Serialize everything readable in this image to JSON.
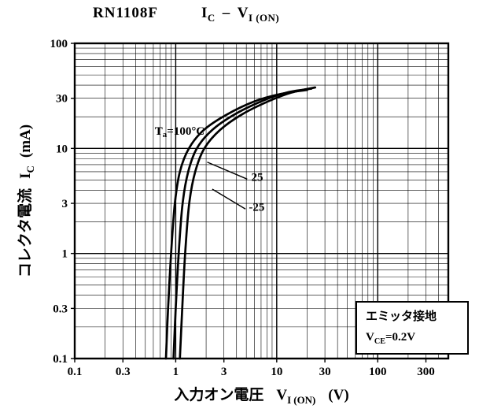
{
  "header": {
    "device": "RN1108F",
    "y_sym": "I",
    "y_sub": "C",
    "dash": "–",
    "x_sym": "V",
    "x_sub": "I (ON)"
  },
  "x_axis": {
    "label_jp": "入力オン電圧",
    "sym": "V",
    "sub": "I (ON)",
    "unit": "(V)"
  },
  "y_axis": {
    "label_jp": "コレクタ電流",
    "sym": "I",
    "sub": "C",
    "unit": "(mA)"
  },
  "note_box": {
    "line1": "エミッタ接地",
    "sym": "V",
    "sub": "CE",
    "value": "=0.2V"
  },
  "chart_data": {
    "type": "line",
    "title": "RN1108F  IC – VI(ON)",
    "xscale": "log",
    "yscale": "log",
    "xlim": [
      0.1,
      500
    ],
    "ylim": [
      0.1,
      100
    ],
    "xticks": [
      "0.1",
      "0.3",
      "1",
      "3",
      "10",
      "30",
      "100",
      "300"
    ],
    "yticks": [
      "0.1",
      "0.3",
      "1",
      "3",
      "10",
      "30",
      "100"
    ],
    "xlabel": "入力オン電圧 VI(ON) (V)",
    "ylabel": "コレクタ電流 IC (mA)",
    "grid": true,
    "legend_position": "annotations-on-plot",
    "series": [
      {
        "name": "Ta=100°C",
        "x": [
          0.8,
          0.84,
          0.9,
          0.98,
          1.1,
          1.35,
          1.9,
          3.2,
          6,
          11,
          20
        ],
        "y": [
          0.1,
          0.3,
          1,
          3,
          6,
          10,
          15,
          21,
          28,
          33,
          36
        ]
      },
      {
        "name": "Ta=25°C",
        "x": [
          0.95,
          1.0,
          1.07,
          1.17,
          1.33,
          1.62,
          2.3,
          3.8,
          7,
          12.5,
          22
        ],
        "y": [
          0.1,
          0.3,
          1,
          3,
          6,
          10,
          15,
          21,
          28,
          34,
          37
        ]
      },
      {
        "name": "Ta=-25°C",
        "x": [
          1.1,
          1.16,
          1.24,
          1.36,
          1.56,
          1.92,
          2.75,
          4.5,
          8.2,
          14,
          24
        ],
        "y": [
          0.1,
          0.3,
          1,
          3,
          6,
          10,
          15,
          21,
          28,
          34,
          38
        ]
      }
    ],
    "annotations": [
      {
        "pre": "T",
        "sub": "a",
        "post": "=100°C",
        "x": 0.62,
        "y": 13.5,
        "anchor": "start"
      },
      {
        "text": "25",
        "x": 5.6,
        "y": 4.9,
        "anchor": "start",
        "leader": [
          5.1,
          5.1,
          2.05,
          7.4
        ]
      },
      {
        "text": "-25",
        "x": 5.3,
        "y": 2.55,
        "anchor": "start",
        "leader": [
          4.9,
          2.65,
          2.3,
          4.1
        ]
      }
    ]
  }
}
